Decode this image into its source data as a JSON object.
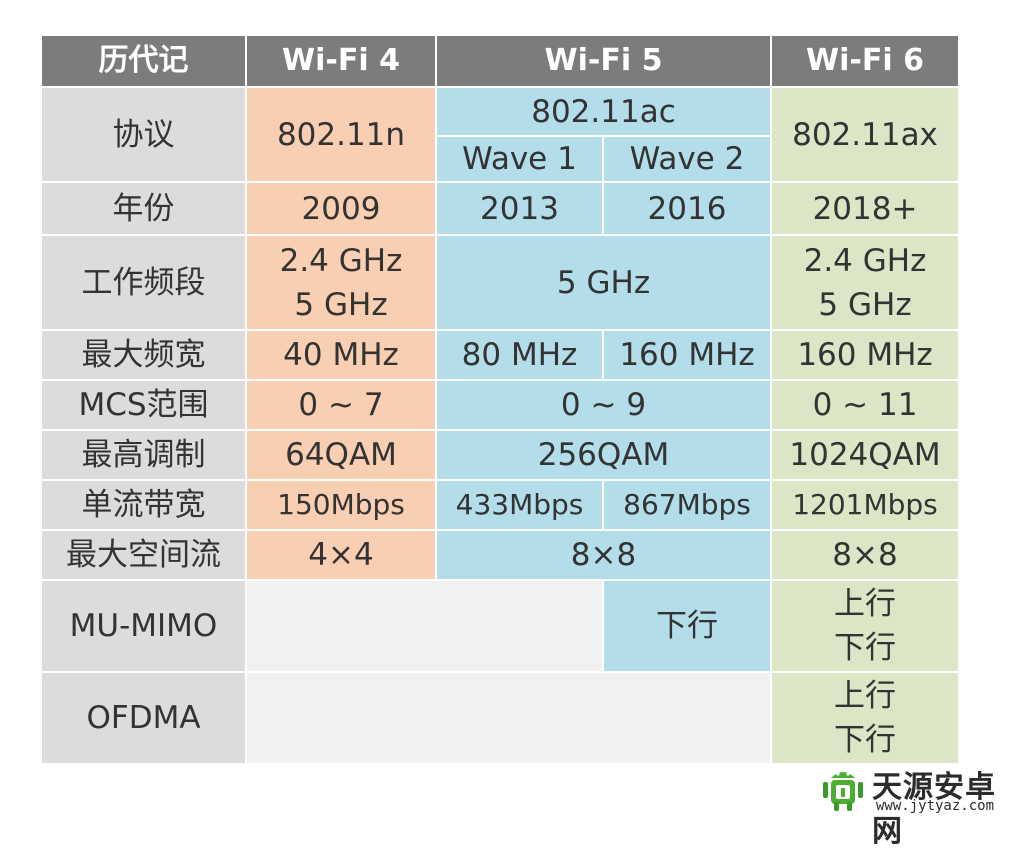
{
  "header": {
    "col0": "历代记",
    "col1": "Wi-Fi 4",
    "col2": "Wi-Fi 5",
    "col3": "Wi-Fi 6"
  },
  "rows": {
    "protocol": {
      "label": "协议",
      "wifi4": "802.11n",
      "wifi5": "802.11ac",
      "wave1": "Wave 1",
      "wave2": "Wave 2",
      "wifi6": "802.11ax"
    },
    "year": {
      "label": "年份",
      "wifi4": "2009",
      "wave1": "2013",
      "wave2": "2016",
      "wifi6": "2018+"
    },
    "band": {
      "label": "工作频段",
      "wifi4_l1": "2.4 GHz",
      "wifi4_l2": "5 GHz",
      "wifi5": "5 GHz",
      "wifi6_l1": "2.4 GHz",
      "wifi6_l2": "5 GHz"
    },
    "max_bw": {
      "label": "最大频宽",
      "wifi4": "40 MHz",
      "wave1": "80 MHz",
      "wave2": "160 MHz",
      "wifi6": "160 MHz"
    },
    "mcs": {
      "label": "MCS范围",
      "wifi4": "0 ~ 7",
      "wifi5": "0 ~ 9",
      "wifi6": "0 ~ 11"
    },
    "modulation": {
      "label": "最高调制",
      "wifi4": "64QAM",
      "wifi5": "256QAM",
      "wifi6": "1024QAM"
    },
    "single_stream": {
      "label": "单流带宽",
      "wifi4": "150Mbps",
      "wave1": "433Mbps",
      "wave2": "867Mbps",
      "wifi6": "1201Mbps"
    },
    "spatial_streams": {
      "label": "最大空间流",
      "wifi4": "4×4",
      "wifi5": "8×8",
      "wifi6": "8×8"
    },
    "mu_mimo": {
      "label": "MU-MIMO",
      "wave2": "下行",
      "wifi6_l1": "上行",
      "wifi6_l2": "下行"
    },
    "ofdma": {
      "label": "OFDMA",
      "wifi6_l1": "上行",
      "wifi6_l2": "下行"
    }
  },
  "watermark": {
    "name": "天源安卓网",
    "url": "www.jytyaz.com"
  },
  "colors": {
    "header_bg": "#7c7c7c",
    "label_bg": "#dcdcdc",
    "wifi4_bg": "#f9cfb3",
    "wifi5_bg": "#b3dde9",
    "wifi6_bg": "#dce6c7",
    "empty_bg": "#f1f1f1"
  }
}
